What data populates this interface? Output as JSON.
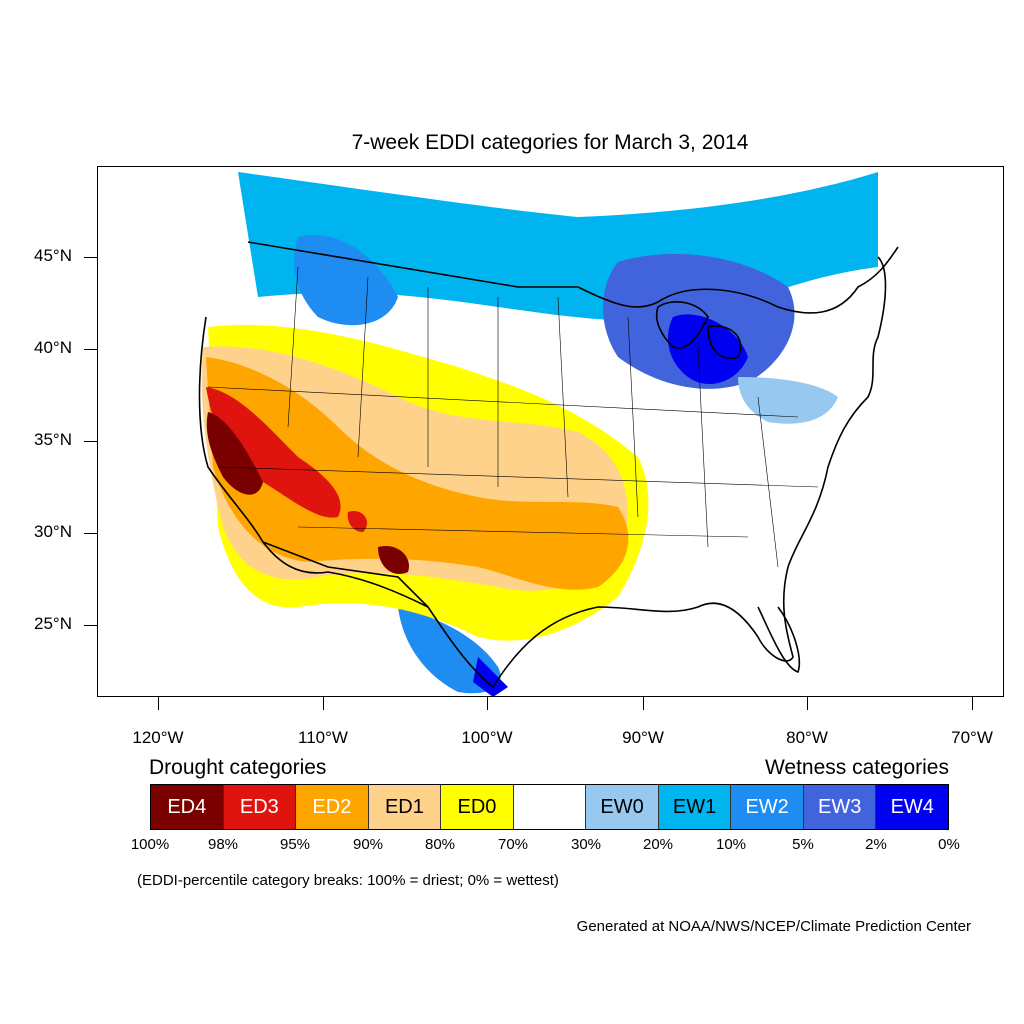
{
  "title": "7-week EDDI categories for March 3, 2014",
  "axes": {
    "lat_labels": [
      "45°N",
      "40°N",
      "35°N",
      "30°N",
      "25°N"
    ],
    "lon_labels": [
      "120°W",
      "110°W",
      "100°W",
      "90°W",
      "80°W",
      "70°W"
    ]
  },
  "legend": {
    "drought_heading": "Drought categories",
    "wetness_heading": "Wetness categories",
    "categories": [
      {
        "label": "ED4",
        "color": "#7a0000",
        "text_color": "#ffffff"
      },
      {
        "label": "ED3",
        "color": "#e0140f",
        "text_color": "#ffffff"
      },
      {
        "label": "ED2",
        "color": "#ffa500",
        "text_color": "#ffffff"
      },
      {
        "label": "ED1",
        "color": "#ffd28c",
        "text_color": "#000000"
      },
      {
        "label": "ED0",
        "color": "#ffff00",
        "text_color": "#000000"
      },
      {
        "label": "",
        "color": "#ffffff",
        "text_color": "#000000"
      },
      {
        "label": "EW0",
        "color": "#96c8f0",
        "text_color": "#000000"
      },
      {
        "label": "EW1",
        "color": "#00b4f0",
        "text_color": "#000000"
      },
      {
        "label": "EW2",
        "color": "#1e8cf0",
        "text_color": "#ffffff"
      },
      {
        "label": "EW3",
        "color": "#4164dc",
        "text_color": "#ffffff"
      },
      {
        "label": "EW4",
        "color": "#0000f0",
        "text_color": "#ffffff"
      }
    ],
    "breaks": [
      "100%",
      "98%",
      "95%",
      "90%",
      "80%",
      "70%",
      "30%",
      "20%",
      "10%",
      "5%",
      "2%",
      "0%"
    ]
  },
  "note": "(EDDI-percentile category breaks: 100% = driest; 0% = wettest)",
  "credit": "Generated at NOAA/NWS/NCEP/Climate Prediction Center"
}
